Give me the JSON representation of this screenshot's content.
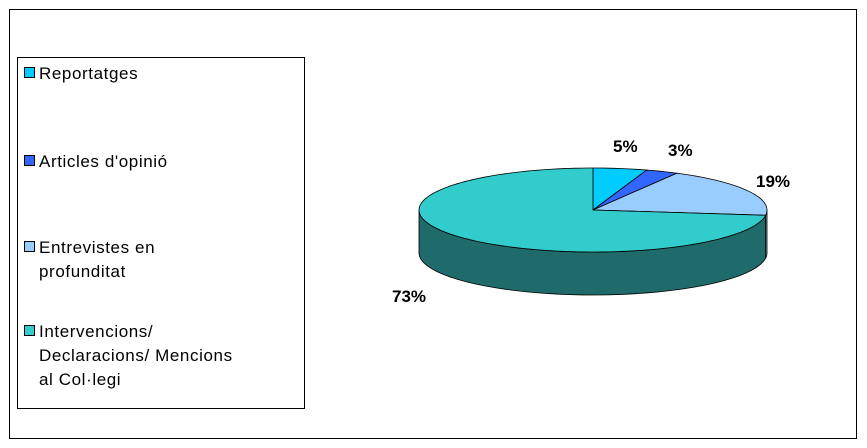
{
  "chart_data": {
    "type": "pie",
    "style": "3d-pie",
    "title": "",
    "legend_position": "left",
    "slices": [
      {
        "label": "Reportatges",
        "value": 5,
        "data_label": "5%",
        "color": "#00ccff",
        "side_color": "#0099bf"
      },
      {
        "label": "Articles d'opinió",
        "value": 3,
        "data_label": "3%",
        "color": "#3366ff",
        "side_color": "#264cbf"
      },
      {
        "label": "Entrevistes en\nprofunditat",
        "value": 19,
        "data_label": "19%",
        "color": "#99ccff",
        "side_color": "#7399bf"
      },
      {
        "label": "Intervencions/\nDeclaracions/ Mencions\nal Col·legi",
        "value": 73,
        "data_label": "73%",
        "color": "#33cccc",
        "side_color": "#1f6a6a"
      }
    ]
  }
}
